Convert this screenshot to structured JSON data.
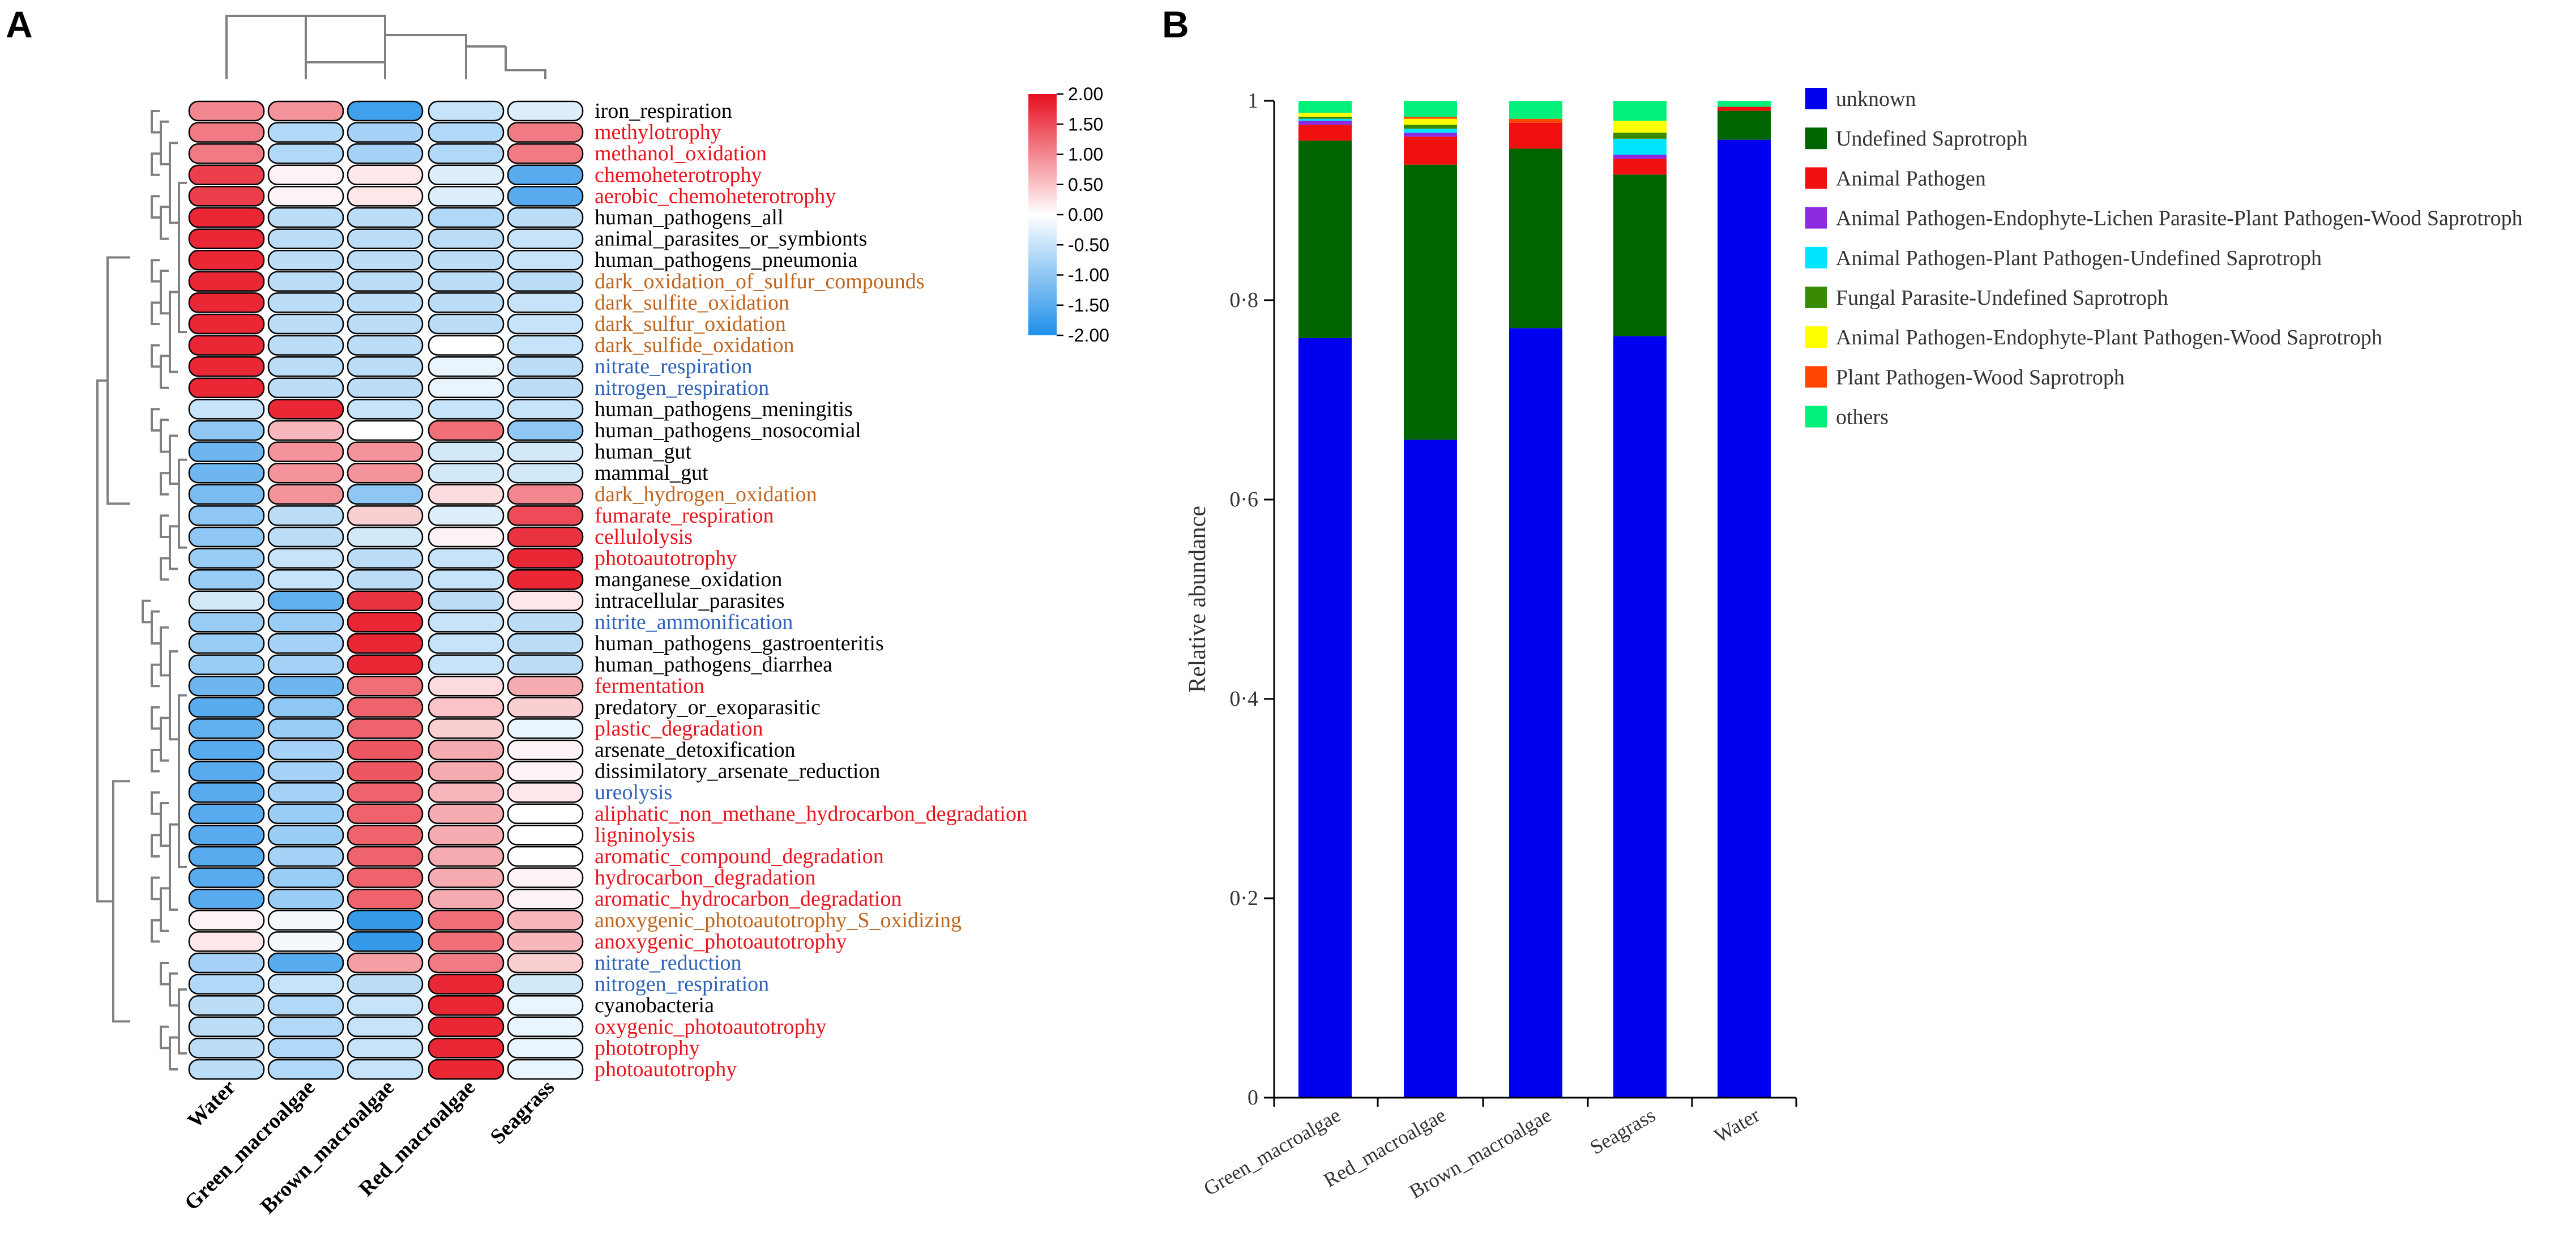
{
  "figure": {
    "panel_a_label": "A",
    "panel_b_label": "B"
  },
  "chart_data": [
    {
      "type": "heatmap",
      "title": "",
      "columns": [
        "Water",
        "Green_macroalgae",
        "Brown_macroalgae",
        "Red_macroalgae",
        "Seagrass"
      ],
      "colorbar": {
        "range": [
          -2.0,
          2.0
        ],
        "ticks": [
          "2.00",
          "1.50",
          "1.00",
          "0.50",
          "0.00",
          "-0.50",
          "-1.00",
          "-1.50",
          "-2.00"
        ],
        "colors": {
          "low": "#1f8fe8",
          "mid": "#ffffff",
          "high": "#e60f1f"
        }
      },
      "label_colors": {
        "red": "#e8141e",
        "orange": "#c0651e",
        "blue": "#2f62b8",
        "black": "#000000"
      },
      "rows": [
        {
          "name": "iron_respiration",
          "color": "black",
          "values": [
            1.0,
            0.9,
            -1.7,
            -0.5,
            -0.3
          ]
        },
        {
          "name": "methylotrophy",
          "color": "red",
          "values": [
            1.1,
            -0.7,
            -0.8,
            -0.7,
            1.1
          ]
        },
        {
          "name": "methanol_oxidation",
          "color": "red",
          "values": [
            1.1,
            -0.7,
            -0.8,
            -0.7,
            1.1
          ]
        },
        {
          "name": "chemoheterotrophy",
          "color": "red",
          "values": [
            1.6,
            0.1,
            0.2,
            -0.3,
            -1.5
          ]
        },
        {
          "name": "aerobic_chemoheterotrophy",
          "color": "red",
          "values": [
            1.6,
            0.1,
            0.2,
            -0.3,
            -1.5
          ]
        },
        {
          "name": "human_pathogens_all",
          "color": "black",
          "values": [
            1.8,
            -0.6,
            -0.6,
            -0.7,
            -0.6
          ]
        },
        {
          "name": "animal_parasites_or_symbionts",
          "color": "black",
          "values": [
            1.8,
            -0.6,
            -0.6,
            -0.6,
            -0.5
          ]
        },
        {
          "name": "human_pathogens_pneumonia",
          "color": "black",
          "values": [
            1.8,
            -0.6,
            -0.6,
            -0.6,
            -0.5
          ]
        },
        {
          "name": "dark_oxidation_of_sulfur_compounds",
          "color": "orange",
          "values": [
            1.8,
            -0.6,
            -0.6,
            -0.6,
            -0.6
          ]
        },
        {
          "name": "dark_sulfite_oxidation",
          "color": "orange",
          "values": [
            1.8,
            -0.6,
            -0.6,
            -0.6,
            -0.5
          ]
        },
        {
          "name": "dark_sulfur_oxidation",
          "color": "orange",
          "values": [
            1.8,
            -0.6,
            -0.6,
            -0.6,
            -0.5
          ]
        },
        {
          "name": "dark_sulfide_oxidation",
          "color": "orange",
          "values": [
            1.8,
            -0.6,
            -0.6,
            0.0,
            -0.5
          ]
        },
        {
          "name": "nitrate_respiration",
          "color": "blue",
          "values": [
            1.8,
            -0.6,
            -0.6,
            -0.2,
            -0.6
          ]
        },
        {
          "name": "nitrogen_respiration",
          "color": "blue",
          "values": [
            1.8,
            -0.6,
            -0.6,
            -0.2,
            -0.6
          ]
        },
        {
          "name": "human_pathogens_meningitis",
          "color": "black",
          "values": [
            -0.5,
            1.8,
            -0.5,
            -0.5,
            -0.5
          ]
        },
        {
          "name": "human_pathogens_nosocomial",
          "color": "black",
          "values": [
            -1.0,
            0.6,
            0.0,
            1.2,
            -1.0
          ]
        },
        {
          "name": "human_gut",
          "color": "black",
          "values": [
            -1.3,
            0.9,
            0.9,
            -0.4,
            -0.4
          ]
        },
        {
          "name": "mammal_gut",
          "color": "black",
          "values": [
            -1.3,
            0.9,
            0.9,
            -0.4,
            -0.4
          ]
        },
        {
          "name": "dark_hydrogen_oxidation",
          "color": "orange",
          "values": [
            -1.2,
            0.9,
            -1.0,
            0.3,
            1.0
          ]
        },
        {
          "name": "fumarate_respiration",
          "color": "red",
          "values": [
            -1.0,
            -0.6,
            0.4,
            -0.3,
            1.5
          ]
        },
        {
          "name": "cellulolysis",
          "color": "red",
          "values": [
            -1.0,
            -0.6,
            -0.4,
            0.1,
            1.7
          ]
        },
        {
          "name": "photoautotrophy",
          "color": "red",
          "values": [
            -0.9,
            -0.5,
            -0.6,
            -0.5,
            1.8
          ]
        },
        {
          "name": "manganese_oxidation",
          "color": "black",
          "values": [
            -0.9,
            -0.5,
            -0.6,
            -0.5,
            1.8
          ]
        },
        {
          "name": "intracellular_parasites",
          "color": "black",
          "values": [
            -0.4,
            -1.4,
            1.7,
            -0.6,
            0.2
          ]
        },
        {
          "name": "nitrite_ammonification",
          "color": "blue",
          "values": [
            -0.9,
            -0.9,
            1.8,
            -0.5,
            -0.6
          ]
        },
        {
          "name": "human_pathogens_gastroenteritis",
          "color": "black",
          "values": [
            -0.9,
            -0.8,
            1.8,
            -0.5,
            -0.6
          ]
        },
        {
          "name": "human_pathogens_diarrhea",
          "color": "black",
          "values": [
            -0.9,
            -0.8,
            1.8,
            -0.5,
            -0.6
          ]
        },
        {
          "name": "fermentation",
          "color": "red",
          "values": [
            -1.3,
            -1.3,
            1.2,
            0.3,
            0.7
          ]
        },
        {
          "name": "predatory_or_exoparasitic",
          "color": "black",
          "values": [
            -1.5,
            -1.0,
            1.3,
            0.5,
            0.4
          ]
        },
        {
          "name": "plastic_degradation",
          "color": "red",
          "values": [
            -1.4,
            -0.9,
            1.3,
            0.4,
            -0.2
          ]
        },
        {
          "name": "arsenate_detoxification",
          "color": "black",
          "values": [
            -1.5,
            -0.8,
            1.4,
            0.7,
            0.1
          ]
        },
        {
          "name": "dissimilatory_arsenate_reduction",
          "color": "black",
          "values": [
            -1.5,
            -0.8,
            1.4,
            0.7,
            0.1
          ]
        },
        {
          "name": "ureolysis",
          "color": "blue",
          "values": [
            -1.5,
            -0.8,
            1.3,
            0.6,
            0.2
          ]
        },
        {
          "name": "aliphatic_non_methane_hydrocarbon_degradation",
          "color": "red",
          "values": [
            -1.5,
            -0.9,
            1.3,
            0.7,
            0.0
          ]
        },
        {
          "name": "ligninolysis",
          "color": "red",
          "values": [
            -1.5,
            -0.9,
            1.3,
            0.7,
            0.0
          ]
        },
        {
          "name": "aromatic_compound_degradation",
          "color": "red",
          "values": [
            -1.5,
            -0.8,
            1.3,
            0.7,
            0.0
          ]
        },
        {
          "name": "hydrocarbon_degradation",
          "color": "red",
          "values": [
            -1.5,
            -0.9,
            1.3,
            0.7,
            0.1
          ]
        },
        {
          "name": "aromatic_hydrocarbon_degradation",
          "color": "red",
          "values": [
            -1.5,
            -0.9,
            1.3,
            0.7,
            0.1
          ]
        },
        {
          "name": "anoxygenic_photoautotrophy_S_oxidizing",
          "color": "orange",
          "values": [
            0.1,
            -0.1,
            -1.8,
            1.2,
            0.6
          ]
        },
        {
          "name": "anoxygenic_photoautotrophy",
          "color": "red",
          "values": [
            0.2,
            -0.1,
            -1.8,
            1.2,
            0.6
          ]
        },
        {
          "name": "nitrate_reduction",
          "color": "blue",
          "values": [
            -0.8,
            -1.5,
            0.8,
            1.1,
            0.4
          ]
        },
        {
          "name": "nitrogen_respiration",
          "color": "blue",
          "values": [
            -0.7,
            -0.5,
            -0.6,
            1.8,
            -0.4
          ]
        },
        {
          "name": "cyanobacteria",
          "color": "black",
          "values": [
            -0.6,
            -0.7,
            -0.5,
            1.8,
            -0.2
          ]
        },
        {
          "name": "oxygenic_photoautotrophy",
          "color": "red",
          "values": [
            -0.6,
            -0.7,
            -0.5,
            1.8,
            -0.2
          ]
        },
        {
          "name": "phototrophy",
          "color": "red",
          "values": [
            -0.6,
            -0.7,
            -0.5,
            1.8,
            -0.2
          ]
        },
        {
          "name": "photoautotrophy",
          "color": "red",
          "values": [
            -0.6,
            -0.7,
            -0.5,
            1.8,
            -0.2
          ]
        }
      ]
    },
    {
      "type": "bar",
      "stacked": true,
      "title": "",
      "xlabel": "",
      "ylabel": "Relative abundance",
      "ylim": [
        0,
        1
      ],
      "yticks": [
        "0",
        "0·2",
        "0·4",
        "0·6",
        "0·8",
        "1"
      ],
      "categories": [
        "Green_macroalgae",
        "Red_macroalgae",
        "Brown_macroalgae",
        "Seagrass",
        "Water"
      ],
      "series": [
        {
          "name": "unknown",
          "color": "#0000f0",
          "values": [
            0.762,
            0.66,
            0.772,
            0.764,
            0.961
          ]
        },
        {
          "name": "Undefined Saprotroph",
          "color": "#006400",
          "values": [
            0.198,
            0.276,
            0.18,
            0.162,
            0.029
          ]
        },
        {
          "name": "Animal Pathogen",
          "color": "#f01010",
          "values": [
            0.016,
            0.028,
            0.026,
            0.016,
            0.004
          ]
        },
        {
          "name": "Animal Pathogen-Endophyte-Lichen Parasite-Plant Pathogen-Wood Saprotroph",
          "color": "#8a2be2",
          "values": [
            0.004,
            0.004,
            0.0,
            0.004,
            0.0
          ]
        },
        {
          "name": "Animal Pathogen-Plant Pathogen-Undefined Saprotroph",
          "color": "#00e5ff",
          "values": [
            0.002,
            0.004,
            0.0,
            0.016,
            0.0
          ]
        },
        {
          "name": "Fungal Parasite-Undefined Saprotroph",
          "color": "#3a8a00",
          "values": [
            0.002,
            0.004,
            0.0,
            0.006,
            0.0
          ]
        },
        {
          "name": "Animal Pathogen-Endophyte-Plant Pathogen-Wood Saprotroph",
          "color": "#ffff00",
          "values": [
            0.004,
            0.006,
            0.0,
            0.012,
            0.0
          ]
        },
        {
          "name": "Plant Pathogen-Wood Saprotroph",
          "color": "#ff4500",
          "values": [
            0.0,
            0.002,
            0.004,
            0.0,
            0.0
          ]
        },
        {
          "name": "others",
          "color": "#00f07a",
          "values": [
            0.012,
            0.016,
            0.018,
            0.02,
            0.006
          ]
        }
      ]
    }
  ]
}
